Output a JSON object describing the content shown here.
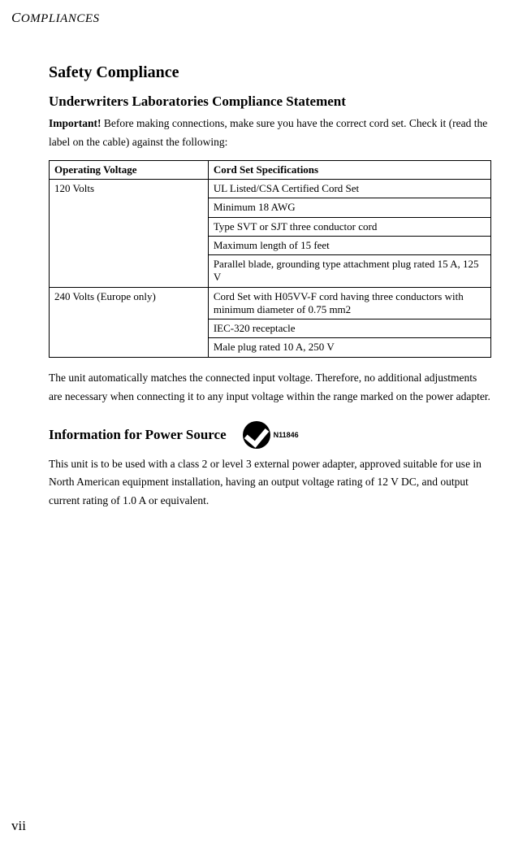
{
  "header": {
    "abbrev_first": "C",
    "abbrev_rest": "OMPLIANCES"
  },
  "page_number": "vii",
  "h1": "Safety Compliance",
  "section1": {
    "h2": "Underwriters Laboratories Compliance Statement",
    "important_label": "Important!",
    "important_text": " Before making connections, make sure you have the correct cord set. Check it (read the label on the cable) against the following:"
  },
  "table": {
    "header": {
      "col1": "Operating Voltage",
      "col2": "Cord Set Specifications"
    },
    "group1": {
      "voltage": "120 Volts",
      "specs": [
        "UL Listed/CSA Certified Cord Set",
        "Minimum 18 AWG",
        "Type SVT or SJT three conductor cord",
        "Maximum length of 15 feet",
        "Parallel blade, grounding type attachment plug rated 15 A, 125 V"
      ]
    },
    "group2": {
      "voltage": "240 Volts (Europe only)",
      "specs": [
        "Cord Set with H05VV-F cord having three conductors with minimum diameter of 0.75 mm2",
        "IEC-320 receptacle",
        "Male plug rated 10 A, 250 V"
      ]
    }
  },
  "after_table_p": "The unit automatically matches the connected input voltage. Therefore, no additional adjustments are necessary when connecting it to any input voltage within the range marked on the power adapter.",
  "section2": {
    "h2": "Information for Power Source",
    "tick_label": "N11846",
    "body": "This unit is to be used with a class 2 or level 3 external power adapter, approved suitable for use in North American equipment installation, having an output voltage rating of 12 V DC, and output current rating of 1.0 A or equivalent."
  }
}
